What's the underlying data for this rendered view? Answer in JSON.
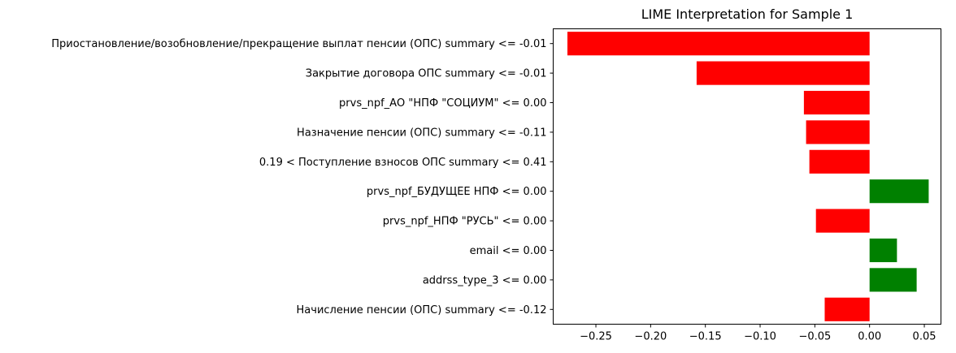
{
  "chart_data": {
    "type": "bar",
    "orientation": "horizontal",
    "title": "LIME Interpretation for Sample 1",
    "xlabel": "",
    "ylabel": "",
    "xlim": [
      -0.289,
      0.0652
    ],
    "xticks": [
      "−0.25",
      "−0.20",
      "−0.15",
      "−0.10",
      "−0.05",
      "0.00",
      "0.05"
    ],
    "xtick_values": [
      -0.25,
      -0.2,
      -0.15,
      -0.1,
      -0.05,
      0.0,
      0.05
    ],
    "grid": false,
    "legend": "none",
    "colors": {
      "positive": "#008000",
      "negative": "#ff0000"
    },
    "categories": [
      "Приостановление/возобновление/прекращение выплат пенсии (ОПС) summary <= -0.01",
      "Закрытие договора ОПС summary <= -0.01",
      "prvs_npf_АО \"НПФ \"СОЦИУМ\" <= 0.00",
      "Назначение пенсии (ОПС) summary <= -0.11",
      "0.19 < Поступление взносов ОПС summary <= 0.41",
      "prvs_npf_БУДУЩЕЕ НПФ <= 0.00",
      "prvs_npf_НПФ \"РУСЬ\" <= 0.00",
      "email <= 0.00",
      "addrss_type_3 <= 0.00",
      "Начисление пенсии (ОПС) summary <= -0.12"
    ],
    "values": [
      -0.276,
      -0.158,
      -0.06,
      -0.058,
      -0.055,
      0.054,
      -0.049,
      0.025,
      0.043,
      -0.041
    ]
  }
}
